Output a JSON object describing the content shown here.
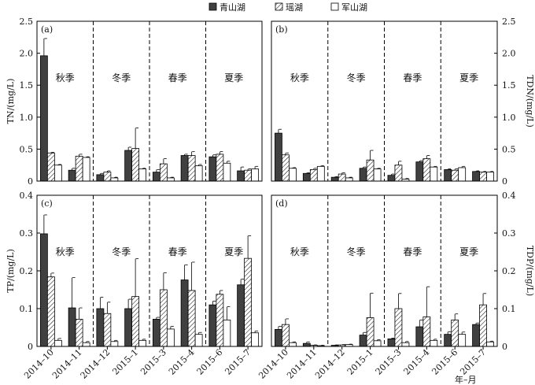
{
  "legend": {
    "position": "top-center",
    "items": [
      {
        "label": "青山湖",
        "fill": "#404040",
        "pattern": "solid"
      },
      {
        "label": "瑶湖",
        "fill": "#ffffff",
        "pattern": "hatch"
      },
      {
        "label": "军山湖",
        "fill": "#ffffff",
        "pattern": "none"
      }
    ]
  },
  "chart_data": {
    "type": "bar",
    "x_ticks": [
      "2014–10",
      "2014–11",
      "2014–12",
      "2015–1",
      "2015–3",
      "2015–4",
      "2015–6",
      "2015–7"
    ],
    "x_axis_label": "年–月",
    "seasons": [
      "秋季",
      "冬季",
      "春季",
      "夏季"
    ],
    "season_boundaries_after_index": [
      1,
      3,
      5
    ],
    "grid": false,
    "panels": [
      {
        "tag": "(a)",
        "ylabel": "TN/(mg/L)",
        "axis_side": "left",
        "ylim": [
          0,
          2.5
        ],
        "yticks": [
          "0",
          "0.5",
          "1.0",
          "1.5",
          "2.0",
          "2.5"
        ],
        "series": [
          {
            "name": "青山湖",
            "values": [
              1.96,
              0.17,
              0.1,
              0.48,
              0.14,
              0.4,
              0.38,
              0.16
            ],
            "errors": [
              0.27,
              0.03,
              0.02,
              0.05,
              0.04,
              0.02,
              0.03,
              0.06
            ]
          },
          {
            "name": "瑶湖",
            "values": [
              0.44,
              0.39,
              0.14,
              0.51,
              0.27,
              0.4,
              0.42,
              0.17
            ],
            "errors": [
              0.01,
              0.03,
              0.02,
              0.32,
              0.08,
              0.06,
              0.04,
              0.02
            ]
          },
          {
            "name": "军山湖",
            "values": [
              0.25,
              0.37,
              0.05,
              0.19,
              0.05,
              0.24,
              0.28,
              0.19
            ],
            "errors": [
              0.01,
              0.01,
              0.01,
              0.01,
              0.01,
              0.02,
              0.03,
              0.04
            ]
          }
        ]
      },
      {
        "tag": "(b)",
        "ylabel": "TDN/(mg/L)",
        "axis_side": "right",
        "ylim": [
          0,
          2.5
        ],
        "yticks": [
          "0",
          "0.5",
          "1.0",
          "1.5",
          "2.0",
          "2.5"
        ],
        "series": [
          {
            "name": "青山湖",
            "values": [
              0.75,
              0.12,
              0.06,
              0.2,
              0.09,
              0.3,
              0.18,
              0.15
            ],
            "errors": [
              0.06,
              0.01,
              0.01,
              0.02,
              0.02,
              0.02,
              0.01,
              0.01
            ]
          },
          {
            "name": "瑶湖",
            "values": [
              0.41,
              0.18,
              0.11,
              0.33,
              0.25,
              0.35,
              0.17,
              0.14
            ],
            "errors": [
              0.03,
              0.02,
              0.02,
              0.15,
              0.06,
              0.05,
              0.02,
              0.01
            ]
          },
          {
            "name": "军山湖",
            "values": [
              0.2,
              0.23,
              0.05,
              0.19,
              0.03,
              0.22,
              0.21,
              0.14
            ],
            "errors": [
              0.01,
              0.01,
              0.01,
              0.01,
              0.01,
              0.01,
              0.02,
              0.01
            ]
          }
        ]
      },
      {
        "tag": "(c)",
        "ylabel": "TP/(mg/L)",
        "axis_side": "left",
        "ylim": [
          0,
          0.4
        ],
        "yticks": [
          "0",
          "0.1",
          "0.2",
          "0.3",
          "0.4"
        ],
        "series": [
          {
            "name": "青山湖",
            "values": [
              0.298,
              0.102,
              0.1,
              0.1,
              0.072,
              0.176,
              0.11,
              0.163
            ],
            "errors": [
              0.05,
              0.08,
              0.03,
              0.025,
              0.005,
              0.04,
              0.01,
              0.015
            ]
          },
          {
            "name": "瑶湖",
            "values": [
              0.184,
              0.072,
              0.087,
              0.132,
              0.15,
              0.148,
              0.138,
              0.233
            ],
            "errors": [
              0.01,
              0.03,
              0.03,
              0.1,
              0.045,
              0.075,
              0.01,
              0.06
            ]
          },
          {
            "name": "军山湖",
            "values": [
              0.016,
              0.01,
              0.013,
              0.016,
              0.046,
              0.032,
              0.07,
              0.036
            ],
            "errors": [
              0.005,
              0.003,
              0.003,
              0.003,
              0.007,
              0.005,
              0.035,
              0.005
            ]
          }
        ]
      },
      {
        "tag": "(d)",
        "ylabel": "TDP/(mg/L)",
        "axis_side": "right",
        "ylim": [
          0,
          0.4
        ],
        "yticks": [
          "0",
          "0.1",
          "0.2",
          "0.3",
          "0.4"
        ],
        "series": [
          {
            "name": "青山湖",
            "values": [
              0.045,
              0.008,
              0.003,
              0.03,
              0.02,
              0.052,
              0.032,
              0.058
            ],
            "errors": [
              0.008,
              0.004,
              0.001,
              0.007,
              0.002,
              0.018,
              0.007,
              0.004
            ]
          },
          {
            "name": "瑶湖",
            "values": [
              0.058,
              0.003,
              0.004,
              0.076,
              0.1,
              0.078,
              0.07,
              0.11
            ],
            "errors": [
              0.015,
              0.001,
              0.001,
              0.065,
              0.04,
              0.08,
              0.016,
              0.03
            ]
          },
          {
            "name": "军山湖",
            "values": [
              0.01,
              0.002,
              0.005,
              0.015,
              0.01,
              0.016,
              0.032,
              0.012
            ],
            "errors": [
              0.002,
              0.001,
              0.001,
              0.003,
              0.003,
              0.003,
              0.006,
              0.002
            ]
          }
        ]
      }
    ]
  }
}
